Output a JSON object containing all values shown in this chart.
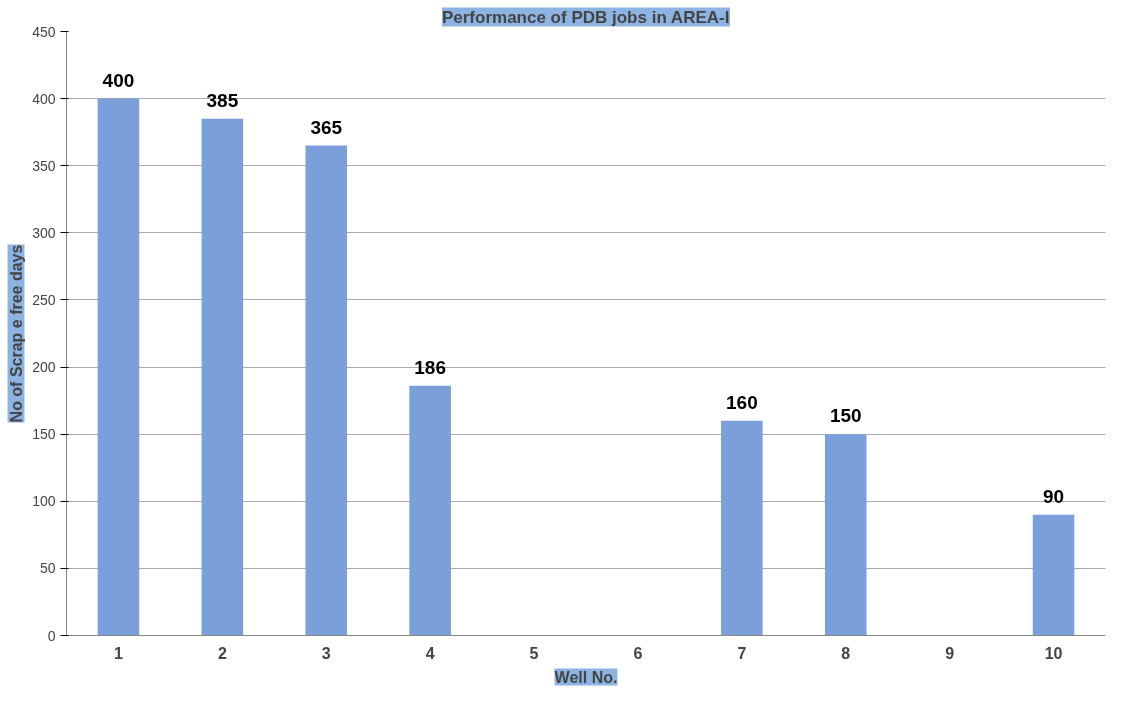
{
  "chart_data": {
    "type": "bar",
    "title": "Performance of PDB jobs in AREA-I",
    "xlabel": "Well No.",
    "ylabel": "No of Scrap e free days",
    "categories": [
      "1",
      "2",
      "3",
      "4",
      "5",
      "6",
      "7",
      "8",
      "9",
      "10"
    ],
    "values": [
      400,
      385,
      365,
      186,
      null,
      null,
      160,
      150,
      null,
      90
    ],
    "color": "#7b9fdb",
    "ylim": [
      0,
      450
    ],
    "yticks": [
      0,
      50,
      100,
      150,
      200,
      250,
      300,
      350,
      400,
      450
    ],
    "grid": "y",
    "data_labels": true
  }
}
